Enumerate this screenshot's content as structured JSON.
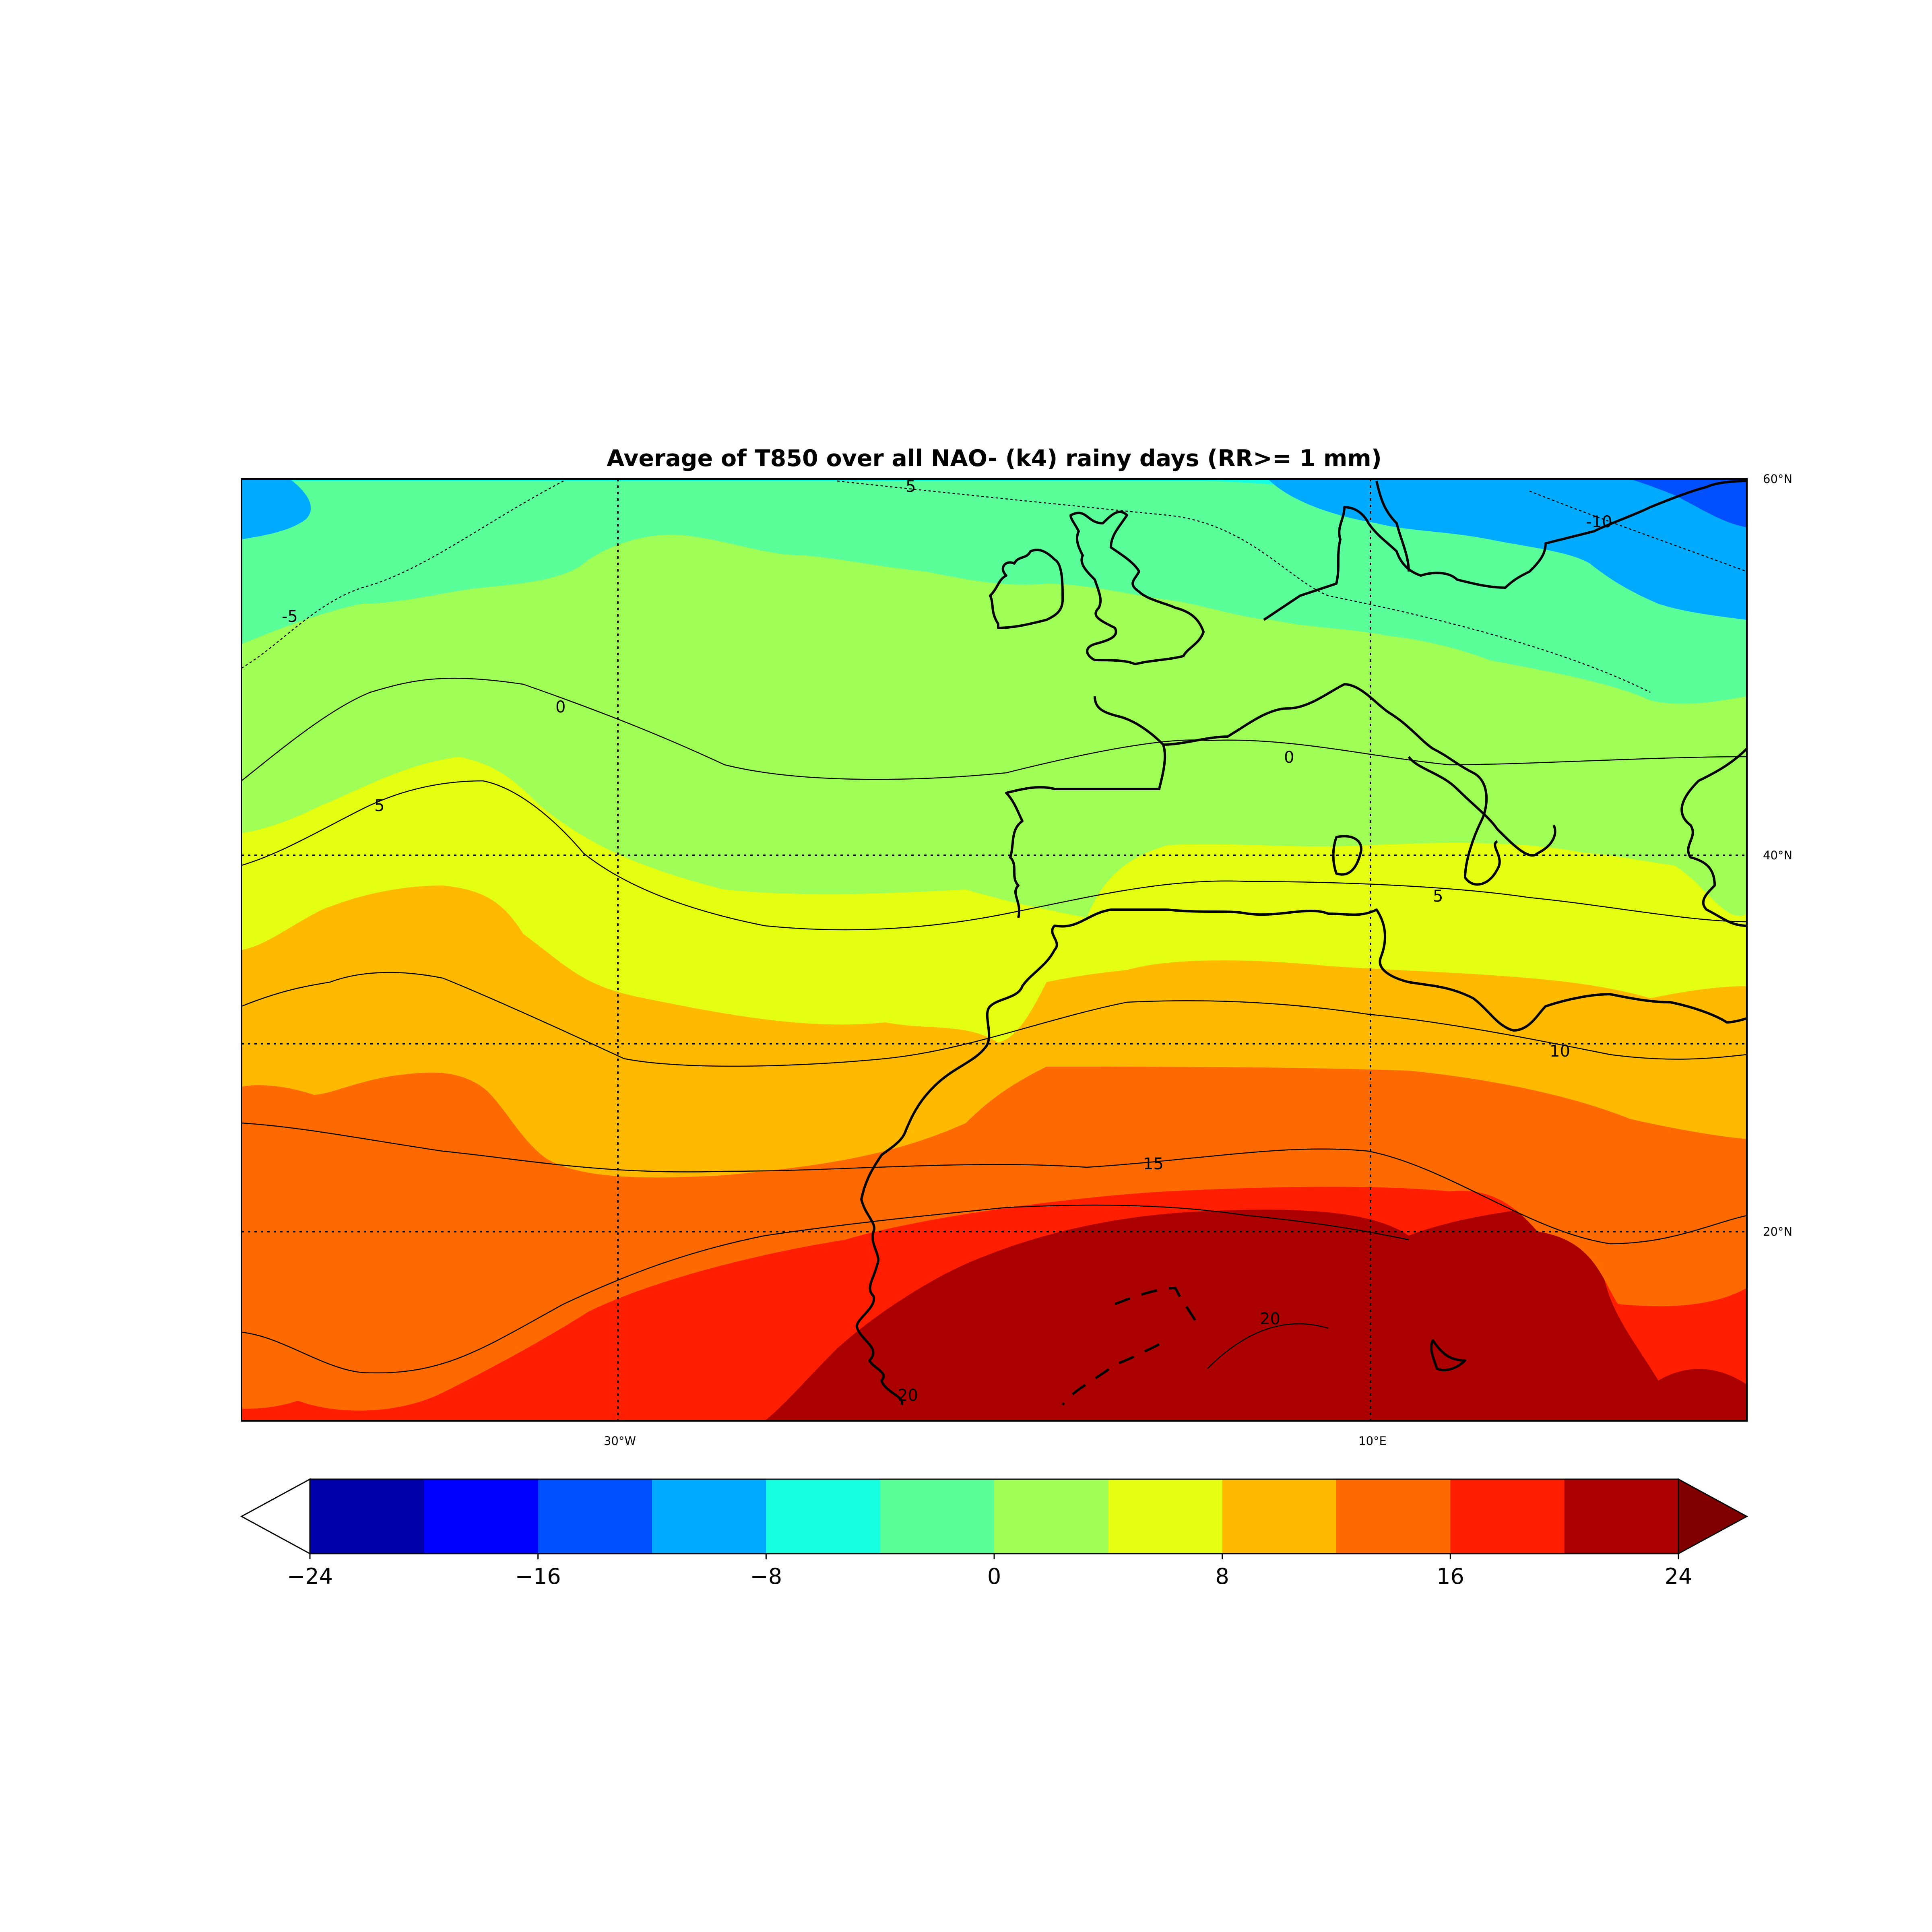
{
  "title": "Average of T850  over all NAO- (k4) rainy days (RR>= 1 mm)",
  "map": {
    "lon_labels": [
      "30°W",
      "10°E"
    ],
    "lat_labels": [
      "60°N",
      "40°N",
      "20°N"
    ],
    "grid": "dotted"
  },
  "chart_data": {
    "type": "heatmap",
    "title": "Average of T850  over all NAO- (k4) rainy days (RR>= 1 mm)",
    "colorbar": {
      "levels": [
        -24,
        -20,
        -16,
        -12,
        -8,
        -4,
        0,
        4,
        8,
        12,
        16,
        20,
        24
      ],
      "tick_values": [
        -24,
        -16,
        -8,
        0,
        8,
        16,
        24
      ],
      "tick_labels": [
        "−24",
        "−16",
        "−8",
        "0",
        "8",
        "16",
        "24"
      ],
      "colors": [
        "#0000aa",
        "#0000ff",
        "#0050ff",
        "#00aaff",
        "#16ffe1",
        "#5aff9a",
        "#a0ff56",
        "#e4ff12",
        "#ffba00",
        "#ff6a00",
        "#ff1e00",
        "#aa0000"
      ],
      "under_color": "#ffffff",
      "over_color": "#800000",
      "extend": "both"
    },
    "contour_labels": [
      "5",
      "0",
      "5",
      "-5",
      "-10",
      "0",
      "5",
      "10",
      "15",
      "20",
      "20"
    ]
  }
}
